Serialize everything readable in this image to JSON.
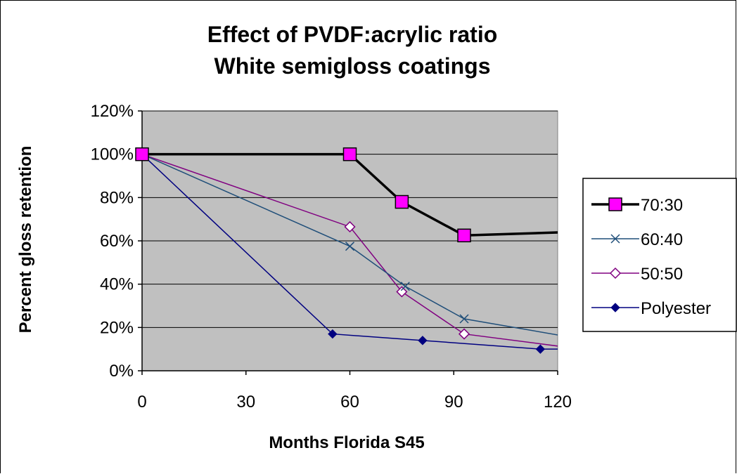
{
  "chart_data": {
    "type": "line",
    "title": "Effect of PVDF:acrylic ratio",
    "subtitle": "White semigloss coatings",
    "xlabel": "Months Florida S45",
    "ylabel": "Percent gloss retention",
    "xlim": [
      0,
      120
    ],
    "ylim": [
      0,
      1.2
    ],
    "xticks": [
      0,
      30,
      60,
      90,
      120
    ],
    "xtick_labels": [
      "0",
      "30",
      "60",
      "90",
      "120"
    ],
    "yticks": [
      0,
      0.2,
      0.4,
      0.6,
      0.8,
      1.0,
      1.2
    ],
    "ytick_labels": [
      "0%",
      "20%",
      "40%",
      "60%",
      "80%",
      "100%",
      "120%"
    ],
    "grid": "horizontal",
    "plot_background": "#c0c0c0",
    "legend_position": "right",
    "series": [
      {
        "name": "70:30",
        "color": "#000000",
        "marker": "square",
        "marker_fill": "#ff00ff",
        "x": [
          0,
          60,
          75,
          93,
          122
        ],
        "y": [
          1.0,
          1.0,
          0.78,
          0.625,
          0.64
        ]
      },
      {
        "name": "60:40",
        "color": "#1f4e79",
        "marker": "x",
        "marker_fill": "none",
        "x": [
          0,
          60,
          76,
          93,
          122
        ],
        "y": [
          1.0,
          0.575,
          0.39,
          0.24,
          0.16
        ]
      },
      {
        "name": "50:50",
        "color": "#800080",
        "marker": "diamond-open",
        "marker_fill": "#ffffff",
        "x": [
          0,
          60,
          75,
          93,
          122
        ],
        "y": [
          1.0,
          0.665,
          0.365,
          0.17,
          0.11
        ]
      },
      {
        "name": "Polyester",
        "color": "#000080",
        "marker": "diamond",
        "marker_fill": "#000080",
        "x": [
          0,
          55,
          81,
          115,
          122
        ],
        "y": [
          1.0,
          0.17,
          0.14,
          0.1,
          0.1
        ]
      }
    ]
  }
}
